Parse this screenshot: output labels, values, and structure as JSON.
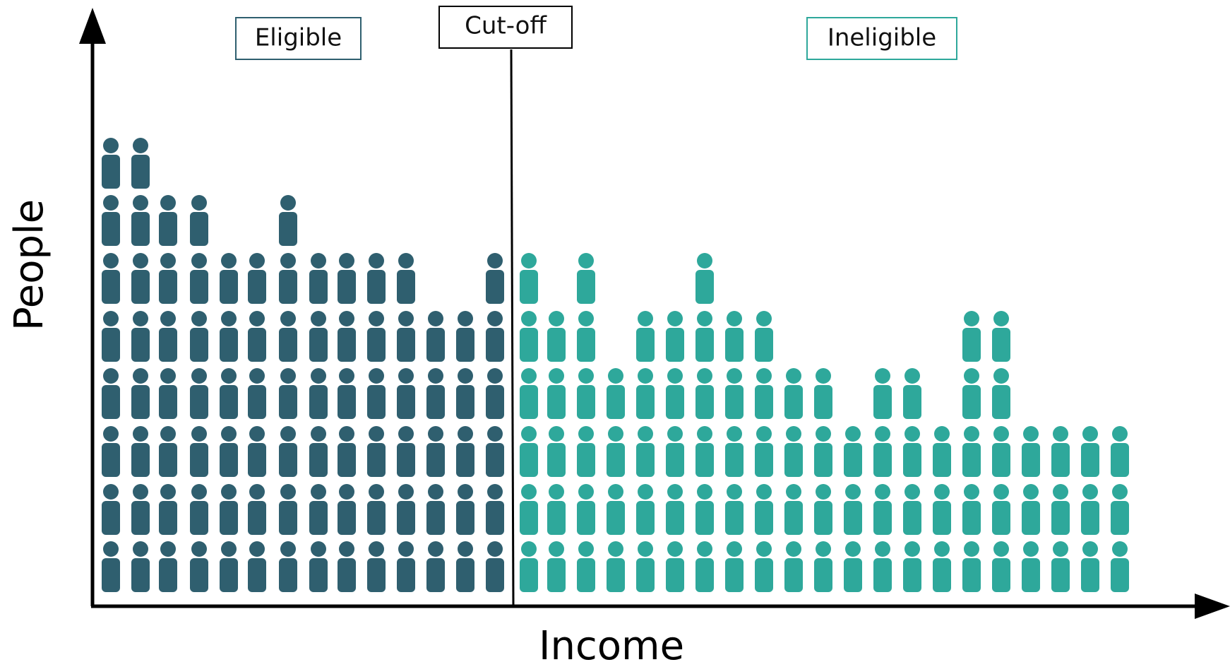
{
  "chart_data": {
    "type": "bar",
    "xlabel": "Income",
    "ylabel": "People",
    "annotations": {
      "eligible": "Eligible",
      "cutoff": "Cut-off",
      "ineligible": "Ineligible"
    },
    "groups": [
      {
        "key": "eligible",
        "color": "#2f5f6f",
        "values": [
          8,
          8,
          7,
          7,
          6,
          6,
          7,
          6,
          6,
          6,
          6,
          5,
          5,
          6
        ]
      },
      {
        "key": "ineligible",
        "color": "#2ea89b",
        "values": [
          6,
          5,
          6,
          4,
          5,
          5,
          6,
          5,
          5,
          4,
          4,
          3,
          4,
          4,
          3,
          5,
          5,
          3,
          3,
          3,
          3
        ]
      }
    ]
  }
}
